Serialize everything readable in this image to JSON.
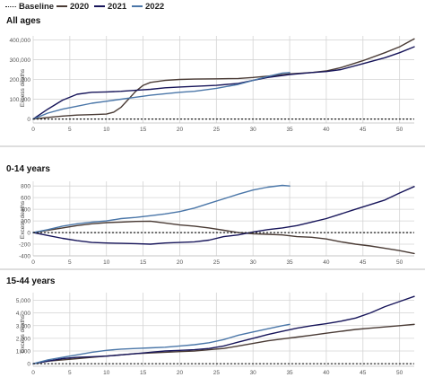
{
  "legend": {
    "items": [
      {
        "label": "Baseline",
        "color": "#222222",
        "dashed": true
      },
      {
        "label": "2020",
        "color": "#4a3b35",
        "dashed": false
      },
      {
        "label": "2021",
        "color": "#17155a",
        "dashed": false
      },
      {
        "label": "2022",
        "color": "#4a76a8",
        "dashed": false
      }
    ]
  },
  "colors": {
    "2020": "#4a3b35",
    "2021": "#17155a",
    "2022": "#4a76a8",
    "baseline": "#222222",
    "grid": "#d4d4d4",
    "separator": "#bdbdbd"
  },
  "chart_data": [
    {
      "type": "line",
      "title": "All ages",
      "xlabel": "",
      "ylabel": "Excess deaths",
      "xlim": [
        0,
        52
      ],
      "ylim": [
        -20000,
        420000
      ],
      "x_ticks": [
        0,
        5,
        10,
        15,
        20,
        25,
        30,
        35,
        40,
        45,
        50
      ],
      "y_ticks": [
        0,
        100000,
        200000,
        300000,
        400000
      ],
      "y_tick_labels": [
        "0",
        "100,000",
        "200,000",
        "300,000",
        "400,000"
      ],
      "grid": true,
      "series": [
        {
          "name": "2020",
          "x": [
            0,
            2,
            4,
            6,
            8,
            10,
            11,
            12,
            13,
            14,
            15,
            16,
            18,
            20,
            22,
            25,
            28,
            30,
            33,
            35,
            38,
            40,
            42,
            45,
            48,
            50,
            52
          ],
          "y": [
            0,
            8000,
            15000,
            20000,
            22000,
            25000,
            35000,
            60000,
            100000,
            140000,
            170000,
            185000,
            195000,
            200000,
            202000,
            203000,
            205000,
            210000,
            220000,
            228000,
            235000,
            243000,
            260000,
            295000,
            335000,
            365000,
            405000
          ]
        },
        {
          "name": "2021",
          "x": [
            0,
            2,
            4,
            6,
            8,
            10,
            12,
            14,
            16,
            18,
            20,
            22,
            25,
            28,
            30,
            32,
            35,
            38,
            40,
            42,
            45,
            48,
            50,
            52
          ],
          "y": [
            0,
            50000,
            95000,
            125000,
            135000,
            137000,
            140000,
            145000,
            150000,
            158000,
            162000,
            165000,
            170000,
            180000,
            195000,
            210000,
            225000,
            235000,
            240000,
            250000,
            280000,
            310000,
            335000,
            365000
          ]
        },
        {
          "name": "2022",
          "x": [
            0,
            2,
            4,
            6,
            8,
            10,
            12,
            14,
            16,
            18,
            20,
            22,
            25,
            28,
            30,
            32,
            34,
            35
          ],
          "y": [
            0,
            30000,
            50000,
            65000,
            80000,
            90000,
            100000,
            110000,
            120000,
            128000,
            135000,
            140000,
            155000,
            175000,
            195000,
            215000,
            232000,
            235000
          ]
        },
        {
          "name": "Baseline",
          "x": [
            0,
            52
          ],
          "y": [
            0,
            0
          ]
        }
      ]
    },
    {
      "type": "line",
      "title": "0-14 years",
      "xlabel": "",
      "ylabel": "Excess deaths",
      "xlim": [
        0,
        52
      ],
      "ylim": [
        -400,
        880
      ],
      "x_ticks": [
        0,
        5,
        10,
        15,
        20,
        25,
        30,
        35,
        40,
        45,
        50
      ],
      "y_ticks": [
        -400,
        -200,
        0,
        200,
        400,
        600,
        800
      ],
      "y_tick_labels": [
        "-400",
        "-200",
        "0",
        "200",
        "400",
        "600",
        "800"
      ],
      "grid": true,
      "series": [
        {
          "name": "2020",
          "x": [
            0,
            2,
            4,
            6,
            8,
            10,
            12,
            14,
            16,
            18,
            20,
            22,
            24,
            26,
            28,
            30,
            32,
            34,
            36,
            38,
            40,
            42,
            44,
            46,
            48,
            50,
            52
          ],
          "y": [
            0,
            40,
            80,
            120,
            150,
            170,
            180,
            190,
            195,
            165,
            130,
            110,
            80,
            40,
            0,
            -20,
            -30,
            -40,
            -70,
            -80,
            -110,
            -160,
            -200,
            -230,
            -270,
            -310,
            -360
          ]
        },
        {
          "name": "2021",
          "x": [
            0,
            2,
            4,
            6,
            8,
            10,
            12,
            14,
            16,
            18,
            20,
            22,
            24,
            26,
            28,
            30,
            32,
            34,
            36,
            38,
            40,
            42,
            44,
            46,
            48,
            50,
            52
          ],
          "y": [
            0,
            -50,
            -100,
            -140,
            -170,
            -180,
            -185,
            -190,
            -200,
            -180,
            -170,
            -160,
            -130,
            -70,
            -40,
            10,
            50,
            80,
            120,
            180,
            240,
            320,
            400,
            480,
            560,
            680,
            790
          ]
        },
        {
          "name": "2022",
          "x": [
            0,
            2,
            4,
            6,
            8,
            10,
            12,
            14,
            16,
            18,
            20,
            22,
            24,
            26,
            28,
            30,
            32,
            34,
            35
          ],
          "y": [
            0,
            50,
            110,
            150,
            180,
            200,
            240,
            260,
            290,
            320,
            360,
            420,
            500,
            580,
            660,
            730,
            780,
            810,
            800
          ]
        },
        {
          "name": "Baseline",
          "x": [
            0,
            52
          ],
          "y": [
            0,
            0
          ]
        }
      ]
    },
    {
      "type": "line",
      "title": "15-44 years",
      "xlabel": "",
      "ylabel": "Excess deaths",
      "xlim": [
        0,
        52
      ],
      "ylim": [
        -200,
        5600
      ],
      "x_ticks": [
        0,
        5,
        10,
        15,
        20,
        25,
        30,
        35,
        40,
        45,
        50
      ],
      "y_ticks": [
        0,
        1000,
        2000,
        3000,
        4000,
        5000
      ],
      "y_tick_labels": [
        "0",
        "1,000",
        "2,000",
        "3,000",
        "4,000",
        "5,000"
      ],
      "grid": true,
      "series": [
        {
          "name": "2020",
          "x": [
            0,
            2,
            4,
            6,
            8,
            10,
            12,
            14,
            16,
            18,
            20,
            22,
            24,
            26,
            28,
            30,
            32,
            34,
            36,
            38,
            40,
            42,
            44,
            46,
            48,
            50,
            52
          ],
          "y": [
            0,
            200,
            300,
            400,
            500,
            600,
            700,
            800,
            850,
            900,
            950,
            1000,
            1100,
            1200,
            1400,
            1600,
            1800,
            1950,
            2100,
            2250,
            2400,
            2550,
            2700,
            2800,
            2900,
            3000,
            3100
          ]
        },
        {
          "name": "2021",
          "x": [
            0,
            2,
            4,
            6,
            8,
            10,
            12,
            14,
            16,
            18,
            20,
            22,
            24,
            26,
            28,
            30,
            32,
            34,
            36,
            38,
            40,
            42,
            44,
            46,
            48,
            50,
            52
          ],
          "y": [
            0,
            200,
            400,
            500,
            550,
            600,
            700,
            800,
            900,
            1000,
            1050,
            1100,
            1200,
            1400,
            1700,
            2000,
            2300,
            2550,
            2800,
            3000,
            3150,
            3350,
            3600,
            4000,
            4500,
            4900,
            5300
          ]
        },
        {
          "name": "2022",
          "x": [
            0,
            2,
            4,
            6,
            8,
            10,
            12,
            14,
            16,
            18,
            20,
            22,
            24,
            26,
            28,
            30,
            32,
            34,
            35
          ],
          "y": [
            0,
            300,
            500,
            700,
            900,
            1050,
            1150,
            1200,
            1250,
            1300,
            1400,
            1500,
            1650,
            1900,
            2250,
            2500,
            2750,
            3000,
            3100
          ]
        },
        {
          "name": "Baseline",
          "x": [
            0,
            52
          ],
          "y": [
            0,
            0
          ]
        }
      ]
    }
  ]
}
